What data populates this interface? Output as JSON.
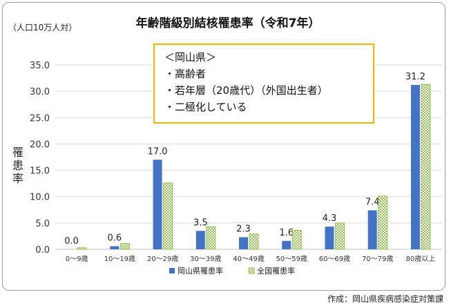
{
  "unit_label": "（人口10万人対）",
  "credit": "作成：岡山県疾病感染症対策課",
  "note": {
    "lines": [
      "＜岡山県＞",
      "・高齢者",
      "・若年層（20歳代）（外国出生者）",
      "・二極化している"
    ]
  },
  "colors": {
    "okayama": "#4472c4",
    "national": "#92c050"
  },
  "chart_data": {
    "type": "bar",
    "title": "年齢階級別結核罹患率（令和7年）",
    "ylabel": "罹患率",
    "xlabel": "",
    "ylim": [
      0,
      35
    ],
    "yticks": [
      "0.0",
      "5.0",
      "10.0",
      "15.0",
      "20.0",
      "25.0",
      "30.0",
      "35.0"
    ],
    "grid": true,
    "legend_position": "bottom",
    "categories": [
      "0～9歳",
      "10～19歳",
      "20～29歳",
      "30～39歳",
      "40～49歳",
      "50～59歳",
      "60～69歳",
      "70～79歳",
      "80歳以上"
    ],
    "series": [
      {
        "name": "岡山県罹患率",
        "values": [
          0.0,
          0.6,
          17.0,
          3.5,
          2.3,
          1.6,
          4.3,
          7.4,
          31.2
        ],
        "data_labels": [
          "0.0",
          "0.6",
          "17.0",
          "3.5",
          "2.3",
          "1.6",
          "4.3",
          "7.4",
          "31.2"
        ]
      },
      {
        "name": "全国罹患率",
        "values": [
          0.3,
          1.1,
          12.6,
          4.3,
          2.9,
          3.6,
          5.0,
          10.1,
          31.3
        ]
      }
    ]
  }
}
